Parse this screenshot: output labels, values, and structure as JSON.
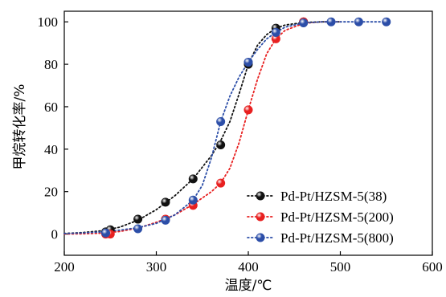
{
  "chart_data": {
    "type": "scatter",
    "xlabel": "温度/℃",
    "ylabel": "甲烷转化率/%",
    "xlim": [
      200,
      600
    ],
    "ylim": [
      -10,
      105
    ],
    "xticks": [
      200,
      300,
      400,
      500,
      600
    ],
    "yticks": [
      0,
      20,
      40,
      60,
      80,
      100
    ],
    "grid": false,
    "legend_position": "bottom-right",
    "series": [
      {
        "name": "Pd-Pt/HZSM-5(38)",
        "color": "#111111",
        "x": [
          245,
          250,
          280,
          310,
          340,
          370,
          400,
          430,
          460
        ],
        "y": [
          1,
          2,
          7,
          15,
          26,
          42,
          80,
          97,
          100
        ],
        "fit_x": [
          200,
          220,
          240,
          260,
          280,
          300,
          320,
          340,
          360,
          370,
          380,
          390,
          400,
          410,
          420,
          430,
          440,
          460,
          480,
          500
        ],
        "fit_y": [
          0.3,
          0.7,
          1.5,
          3.2,
          6.5,
          11.5,
          18,
          26,
          37,
          44,
          53,
          66,
          80,
          89,
          94,
          97,
          98.5,
          99.7,
          100,
          100
        ]
      },
      {
        "name": "Pd-Pt/HZSM-5(200)",
        "color": "#e82020",
        "x": [
          245,
          250,
          310,
          340,
          370,
          400,
          430,
          460
        ],
        "y": [
          0,
          0,
          7,
          13.5,
          24,
          58.5,
          92,
          100
        ],
        "fit_x": [
          200,
          220,
          240,
          260,
          280,
          300,
          320,
          340,
          360,
          370,
          380,
          390,
          400,
          410,
          420,
          430,
          440,
          460,
          480,
          500
        ],
        "fit_y": [
          0,
          0.1,
          0.4,
          1.2,
          2.8,
          5.5,
          9,
          14,
          20,
          24,
          31,
          43,
          58.5,
          73,
          85,
          92,
          96,
          99.3,
          100,
          100
        ]
      },
      {
        "name": "Pd-Pt/HZSM-5(800)",
        "color": "#2c4ea8",
        "x": [
          245,
          280,
          310,
          340,
          370,
          400,
          430,
          460,
          490,
          520,
          550
        ],
        "y": [
          0.5,
          2.5,
          6.5,
          16,
          53,
          81,
          95,
          99.5,
          100,
          100,
          100
        ],
        "fit_x": [
          200,
          220,
          240,
          260,
          280,
          300,
          320,
          340,
          350,
          360,
          370,
          380,
          390,
          400,
          410,
          420,
          430,
          440,
          460,
          480,
          500,
          550
        ],
        "fit_y": [
          0.2,
          0.5,
          1,
          1.8,
          3,
          5,
          9,
          16,
          23,
          36,
          53,
          65,
          74,
          81,
          87,
          92,
          95,
          97.5,
          99.5,
          100,
          100,
          100
        ]
      }
    ]
  }
}
